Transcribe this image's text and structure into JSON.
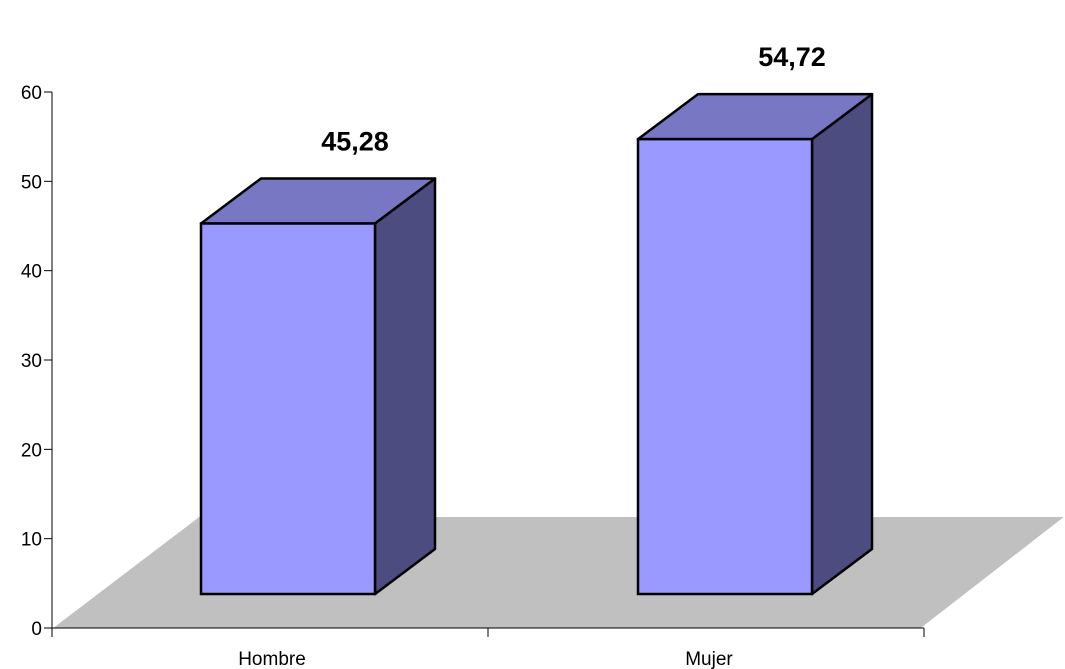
{
  "chart_data": {
    "type": "bar",
    "style": "3d-column",
    "categories": [
      "Hombre",
      "Mujer"
    ],
    "values": [
      45.28,
      54.72
    ],
    "data_labels": [
      "45,28",
      "54,72"
    ],
    "yticks": [
      "0",
      "10",
      "20",
      "30",
      "40",
      "50",
      "60"
    ],
    "ylim": [
      0,
      60
    ],
    "title": "",
    "xlabel": "",
    "ylabel": "",
    "grid": false,
    "legend": "none",
    "colors": {
      "front": "#9999ff",
      "top": "#7777c4",
      "side": "#4c4c80",
      "floor": "#c0c0c0",
      "edge": "#000000"
    }
  }
}
